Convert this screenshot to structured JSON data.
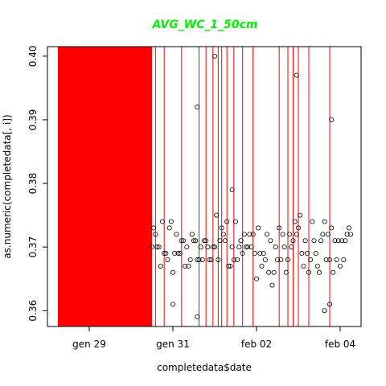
{
  "chart_data": {
    "type": "scatter",
    "title": "AVG_WC_1_50cm",
    "title_color": "#00ee00",
    "xlabel": "completedata$date",
    "ylabel": "as.numeric(completedata[, i])",
    "x_ticks": [
      "gen 29",
      "gen 31",
      "feb 02",
      "feb 04"
    ],
    "x_tick_dates": [
      "2014-01-29",
      "2014-01-31",
      "2014-02-02",
      "2014-02-04"
    ],
    "xlim": [
      "2014-01-28 00:00",
      "2014-02-04 12:00"
    ],
    "y_ticks": [
      0.36,
      0.37,
      0.38,
      0.39,
      0.4
    ],
    "ylim": [
      0.3575,
      0.4015
    ],
    "grid": false,
    "point_color": "#000000",
    "highlight_color": "#ff0000",
    "highlight_band": [
      "2014-01-28 06:00",
      "2014-01-30 12:00"
    ],
    "highlight_lines": [
      "2014-01-30 14:00",
      "2014-01-30 19:00",
      "2014-01-31 05:00",
      "2014-01-31 15:00",
      "2014-01-31 19:00",
      "2014-01-31 23:00",
      "2014-02-01 02:00",
      "2014-02-01 04:00",
      "2014-02-01 07:00",
      "2014-02-01 11:00",
      "2014-02-01 16:00",
      "2014-02-01 22:00",
      "2014-02-02 13:00",
      "2014-02-02 18:00",
      "2014-02-02 21:00",
      "2014-02-03 00:00",
      "2014-02-03 06:00",
      "2014-02-03 18:00"
    ],
    "series": [
      {
        "x_range": [
          "2014-01-30 12:00",
          "2014-02-04 06:00"
        ],
        "points_per_hour": 1,
        "median": 0.37,
        "spread": 0.004,
        "outliers": [
          {
            "x": "2014-01-31 14:00",
            "y": 0.392
          },
          {
            "x": "2014-02-01 00:00",
            "y": 0.4
          },
          {
            "x": "2014-02-02 23:00",
            "y": 0.397
          },
          {
            "x": "2014-02-03 19:00",
            "y": 0.39
          },
          {
            "x": "2014-02-01 10:00",
            "y": 0.379
          },
          {
            "x": "2014-01-31 14:00",
            "y": 0.359
          },
          {
            "x": "2014-01-31 00:00",
            "y": 0.361
          },
          {
            "x": "2014-02-03 15:00",
            "y": 0.36
          },
          {
            "x": "2014-02-03 18:00",
            "y": 0.361
          }
        ]
      }
    ]
  }
}
